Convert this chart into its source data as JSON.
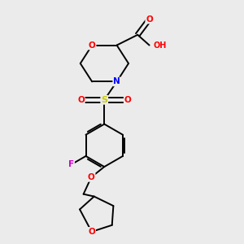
{
  "background_color": "#ebebeb",
  "bond_color": "#000000",
  "atom_colors": {
    "O": "#ff0000",
    "N": "#0000ff",
    "S": "#cccc00",
    "F": "#cc00cc",
    "C": "#000000",
    "H": "#4a9090"
  },
  "lw": 1.4,
  "fontsize": 7.5
}
